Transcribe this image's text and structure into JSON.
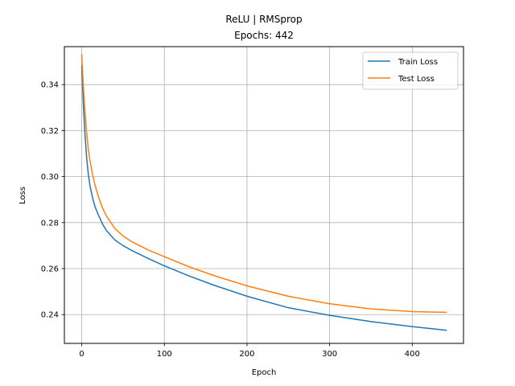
{
  "chart_data": {
    "type": "line",
    "title": "ReLU | RMSprop",
    "subtitle": "Epochs: 442",
    "xlabel": "Epoch",
    "ylabel": "Loss",
    "xlim": [
      -21,
      462
    ],
    "ylim": [
      0.2275,
      0.3565
    ],
    "xticks": [
      0,
      100,
      200,
      300,
      400
    ],
    "yticks": [
      0.24,
      0.26,
      0.28,
      0.3,
      0.32,
      0.34
    ],
    "ytick_labels": [
      "0.24",
      "0.26",
      "0.28",
      "0.30",
      "0.32",
      "0.34"
    ],
    "grid": true,
    "legend_position": "top-right",
    "series": [
      {
        "name": "Train Loss",
        "color": "#1f77b4",
        "x": [
          0,
          2,
          4,
          6,
          8,
          10,
          13,
          16,
          20,
          25,
          30,
          40,
          50,
          60,
          80,
          100,
          130,
          160,
          200,
          250,
          300,
          350,
          400,
          441
        ],
        "values": [
          0.348,
          0.331,
          0.318,
          0.308,
          0.301,
          0.296,
          0.291,
          0.287,
          0.2835,
          0.2795,
          0.2765,
          0.2725,
          0.27,
          0.268,
          0.2645,
          0.2612,
          0.2568,
          0.2528,
          0.248,
          0.243,
          0.2397,
          0.237,
          0.2348,
          0.2332
        ]
      },
      {
        "name": "Test Loss",
        "color": "#ff7f0e",
        "x": [
          0,
          2,
          4,
          6,
          8,
          10,
          13,
          16,
          20,
          25,
          30,
          40,
          50,
          60,
          80,
          100,
          130,
          160,
          200,
          250,
          300,
          350,
          400,
          441
        ],
        "values": [
          0.353,
          0.339,
          0.328,
          0.319,
          0.312,
          0.307,
          0.301,
          0.2965,
          0.2915,
          0.2865,
          0.2828,
          0.2775,
          0.2742,
          0.2718,
          0.2682,
          0.2652,
          0.2608,
          0.257,
          0.2525,
          0.248,
          0.2447,
          0.2425,
          0.2413,
          0.241
        ]
      }
    ]
  }
}
